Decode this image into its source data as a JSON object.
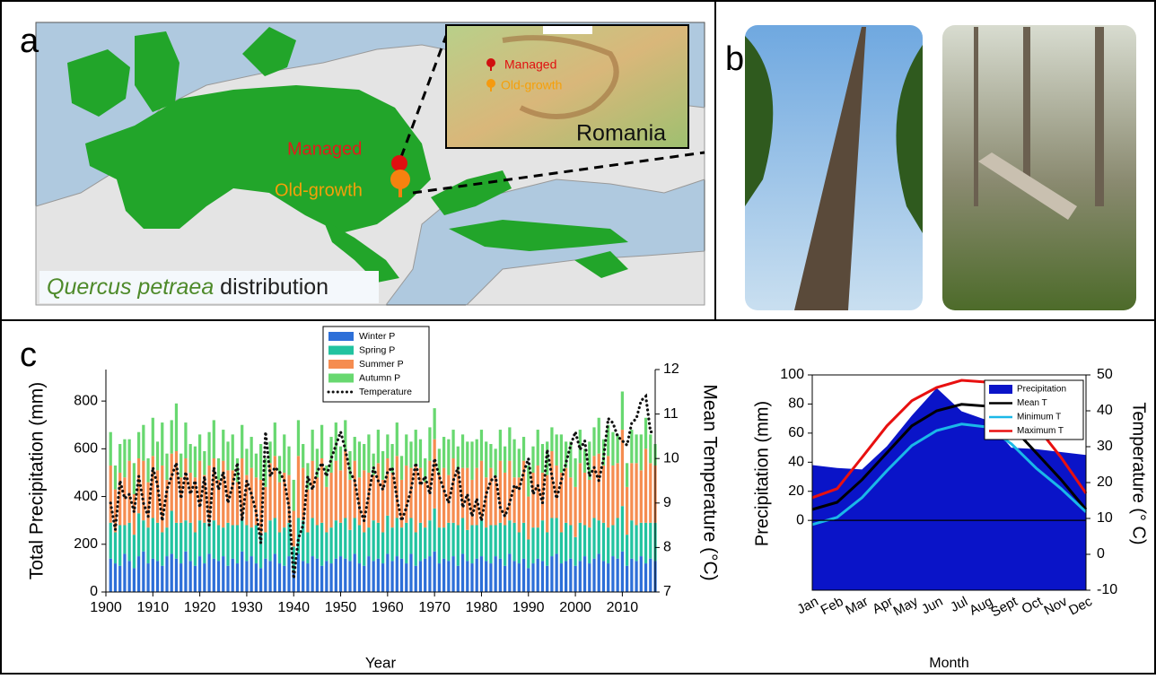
{
  "figure": {
    "panel_labels": [
      "a",
      "b",
      "c"
    ],
    "map": {
      "main_labels": [
        "Managed",
        "Old-growth"
      ],
      "inset_labels": [
        "Managed",
        "Old-growth"
      ],
      "inset_title": "Romania",
      "caption_species": "Quercus petraea",
      "caption_rest": "distribution"
    }
  },
  "chart_data": [
    {
      "type": "stacked-bar-line",
      "x_label": "Year",
      "y_label": "Total Precipitation (mm)",
      "y2_label": "Mean Temperature (°C)",
      "xlim": [
        1900,
        2017
      ],
      "xticks": [
        1900,
        1910,
        1920,
        1930,
        1940,
        1950,
        1960,
        1970,
        1980,
        1990,
        2000,
        2010
      ],
      "ylim": [
        0,
        932
      ],
      "yticks": [
        0,
        200,
        400,
        600,
        800
      ],
      "y2lim": [
        7,
        12
      ],
      "y2ticks": [
        7,
        8,
        9,
        10,
        11,
        12
      ],
      "x": [
        1901,
        1902,
        1903,
        1904,
        1905,
        1906,
        1907,
        1908,
        1909,
        1910,
        1911,
        1912,
        1913,
        1914,
        1915,
        1916,
        1917,
        1918,
        1919,
        1920,
        1921,
        1922,
        1923,
        1924,
        1925,
        1926,
        1927,
        1928,
        1929,
        1930,
        1931,
        1932,
        1933,
        1934,
        1935,
        1936,
        1937,
        1938,
        1939,
        1940,
        1941,
        1942,
        1943,
        1944,
        1945,
        1946,
        1947,
        1948,
        1949,
        1950,
        1951,
        1952,
        1953,
        1954,
        1955,
        1956,
        1957,
        1958,
        1959,
        1960,
        1961,
        1962,
        1963,
        1964,
        1965,
        1966,
        1967,
        1968,
        1969,
        1970,
        1971,
        1972,
        1973,
        1974,
        1975,
        1976,
        1977,
        1978,
        1979,
        1980,
        1981,
        1982,
        1983,
        1984,
        1985,
        1986,
        1987,
        1988,
        1989,
        1990,
        1991,
        1992,
        1993,
        1994,
        1995,
        1996,
        1997,
        1998,
        1999,
        2000,
        2001,
        2002,
        2003,
        2004,
        2005,
        2006,
        2007,
        2008,
        2009,
        2010,
        2011,
        2012,
        2013,
        2014,
        2015,
        2016,
        2017
      ],
      "series": [
        {
          "name": "Winter P",
          "color": "#2d6fd8",
          "values": [
            140,
            120,
            110,
            160,
            130,
            100,
            150,
            170,
            120,
            140,
            130,
            110,
            150,
            160,
            140,
            120,
            170,
            130,
            110,
            150,
            120,
            160,
            140,
            130,
            150,
            110,
            140,
            120,
            170,
            130,
            150,
            120,
            100,
            140,
            130,
            160,
            120,
            110,
            150,
            90,
            160,
            130,
            120,
            150,
            140,
            110,
            130,
            120,
            140,
            150,
            140,
            130,
            160,
            120,
            110,
            150,
            130,
            140,
            120,
            160,
            130,
            150,
            140,
            120,
            160,
            110,
            130,
            140,
            150,
            170,
            120,
            140,
            130,
            150,
            110,
            160,
            130,
            120,
            140,
            150,
            130,
            120,
            150,
            140,
            110,
            160,
            130,
            120,
            140,
            100,
            120,
            140,
            130,
            110,
            150,
            160,
            120,
            130,
            140,
            110,
            130,
            150,
            120,
            140,
            160,
            130,
            120,
            150,
            140,
            170,
            110,
            140,
            130,
            150,
            120,
            140,
            130
          ]
        },
        {
          "name": "Spring P",
          "color": "#22c3a0",
          "values": [
            150,
            130,
            170,
            120,
            160,
            140,
            180,
            130,
            150,
            170,
            160,
            140,
            120,
            180,
            150,
            170,
            130,
            160,
            140,
            150,
            170,
            130,
            160,
            150,
            120,
            180,
            140,
            160,
            130,
            150,
            120,
            160,
            140,
            110,
            170,
            150,
            130,
            160,
            140,
            100,
            150,
            170,
            130,
            160,
            140,
            180,
            120,
            150,
            160,
            140,
            170,
            130,
            150,
            160,
            140,
            120,
            170,
            150,
            130,
            160,
            140,
            160,
            130,
            170,
            150,
            140,
            160,
            130,
            150,
            180,
            150,
            130,
            160,
            140,
            170,
            150,
            130,
            160,
            140,
            150,
            140,
            160,
            130,
            150,
            170,
            140,
            160,
            130,
            150,
            120,
            150,
            130,
            170,
            140,
            160,
            150,
            130,
            160,
            140,
            120,
            160,
            130,
            150,
            170,
            140,
            160,
            150,
            130,
            170,
            190,
            130,
            160,
            150,
            140,
            170,
            150,
            160
          ]
        },
        {
          "name": "Summer P",
          "color": "#f58c50",
          "values": [
            240,
            180,
            220,
            200,
            260,
            170,
            230,
            250,
            190,
            260,
            220,
            280,
            200,
            240,
            300,
            190,
            260,
            210,
            230,
            250,
            200,
            240,
            260,
            190,
            280,
            220,
            230,
            180,
            260,
            210,
            250,
            200,
            230,
            190,
            240,
            260,
            210,
            230,
            200,
            150,
            260,
            220,
            180,
            240,
            200,
            270,
            190,
            230,
            250,
            220,
            280,
            210,
            240,
            200,
            260,
            230,
            190,
            250,
            220,
            240,
            230,
            260,
            200,
            240,
            210,
            280,
            230,
            190,
            250,
            290,
            220,
            250,
            200,
            270,
            230,
            210,
            260,
            190,
            240,
            250,
            210,
            240,
            200,
            260,
            220,
            250,
            190,
            230,
            260,
            180,
            230,
            260,
            200,
            240,
            280,
            220,
            250,
            230,
            200,
            210,
            250,
            220,
            200,
            260,
            280,
            240,
            300,
            250,
            230,
            320,
            200,
            240,
            260,
            220,
            310,
            250,
            240
          ]
        },
        {
          "name": "Autumn P",
          "color": "#68d870",
          "values": [
            140,
            100,
            120,
            160,
            90,
            130,
            110,
            150,
            100,
            160,
            120,
            180,
            110,
            140,
            200,
            100,
            150,
            120,
            130,
            110,
            100,
            140,
            160,
            90,
            130,
            120,
            150,
            100,
            140,
            110,
            130,
            100,
            150,
            120,
            90,
            140,
            110,
            160,
            120,
            130,
            150,
            100,
            110,
            130,
            120,
            140,
            90,
            150,
            160,
            100,
            130,
            120,
            100,
            150,
            110,
            160,
            90,
            140,
            120,
            100,
            120,
            140,
            100,
            130,
            110,
            150,
            120,
            100,
            140,
            130,
            110,
            130,
            150,
            120,
            100,
            140,
            110,
            160,
            120,
            130,
            150,
            100,
            120,
            130,
            110,
            140,
            160,
            120,
            100,
            130,
            110,
            150,
            120,
            140,
            100,
            130,
            160,
            110,
            150,
            120,
            140,
            100,
            160,
            120,
            150,
            110,
            130,
            140,
            120,
            160,
            100,
            140,
            120,
            150,
            130,
            120,
            90
          ]
        },
        {
          "name": "Temperature",
          "color": "#111111",
          "axis": "y2",
          "style": "dotted",
          "values": [
            9.0,
            8.4,
            9.5,
            9.1,
            9.2,
            8.8,
            9.6,
            9.0,
            8.7,
            9.8,
            9.4,
            8.6,
            9.3,
            9.6,
            9.9,
            9.1,
            9.7,
            9.2,
            9.5,
            8.9,
            9.6,
            8.5,
            9.8,
            9.3,
            9.7,
            9.0,
            9.4,
            9.9,
            8.6,
            9.5,
            9.2,
            8.8,
            8.1,
            10.6,
            9.6,
            9.8,
            9.7,
            9.5,
            8.9,
            7.3,
            8.2,
            8.5,
            9.6,
            9.3,
            9.7,
            9.9,
            9.6,
            10.0,
            10.3,
            10.6,
            10.2,
            9.7,
            9.5,
            8.9,
            8.6,
            9.2,
            9.8,
            9.5,
            9.3,
            9.7,
            9.8,
            9.1,
            8.6,
            8.9,
            9.3,
            9.9,
            9.4,
            9.6,
            9.2,
            10.0,
            9.6,
            9.3,
            9.0,
            9.5,
            9.8,
            8.9,
            9.2,
            8.7,
            9.1,
            8.6,
            9.2,
            9.5,
            9.6,
            8.9,
            8.7,
            9.0,
            9.4,
            9.3,
            9.7,
            10.0,
            9.2,
            9.4,
            9.0,
            10.2,
            9.6,
            9.1,
            9.5,
            9.9,
            10.3,
            10.6,
            10.2,
            10.4,
            9.6,
            9.8,
            9.5,
            10.0,
            10.9,
            10.8,
            10.5,
            10.4,
            10.3,
            10.8,
            10.9,
            11.3,
            11.4,
            10.6,
            10.6
          ]
        }
      ]
    },
    {
      "type": "climate",
      "x_label": "Month",
      "y_label": "Precipitation (mm)",
      "y2_label": "Temperature (° C)",
      "categories": [
        "Jan",
        "Feb",
        "Mar",
        "Apr",
        "May",
        "Jun",
        "Jul",
        "Aug",
        "Sept",
        "Oct",
        "Nov",
        "Dec"
      ],
      "ylim": [
        -48,
        100
      ],
      "yticks": [
        0,
        20,
        40,
        60,
        80,
        100
      ],
      "y2lim": [
        -10,
        50
      ],
      "y2ticks": [
        -10,
        0,
        10,
        20,
        30,
        40,
        50
      ],
      "series": [
        {
          "name": "Precipitation",
          "color": "#0a14c8",
          "style": "area",
          "values": [
            38,
            36,
            35,
            51,
            72,
            91,
            75,
            69,
            50,
            49,
            47,
            45
          ]
        },
        {
          "name": "Mean T",
          "color": "#000000",
          "axis": "y2",
          "values": [
            12.5,
            14.5,
            20.8,
            28.3,
            35.8,
            40,
            41.8,
            41.3,
            35.8,
            28.3,
            20.8,
            12.5
          ]
        },
        {
          "name": "Minimum T",
          "color": "#1ab8e8",
          "axis": "y2",
          "values": [
            8.3,
            10.3,
            15.8,
            23.3,
            30.3,
            34.5,
            36.3,
            35.5,
            30.8,
            24,
            18.3,
            11.8
          ]
        },
        {
          "name": "Maximum T",
          "color": "#e81010",
          "axis": "y2",
          "values": [
            15.8,
            18.3,
            27,
            35.8,
            42.8,
            46.5,
            48.5,
            48,
            42.5,
            35.8,
            27,
            17
          ]
        }
      ]
    }
  ]
}
